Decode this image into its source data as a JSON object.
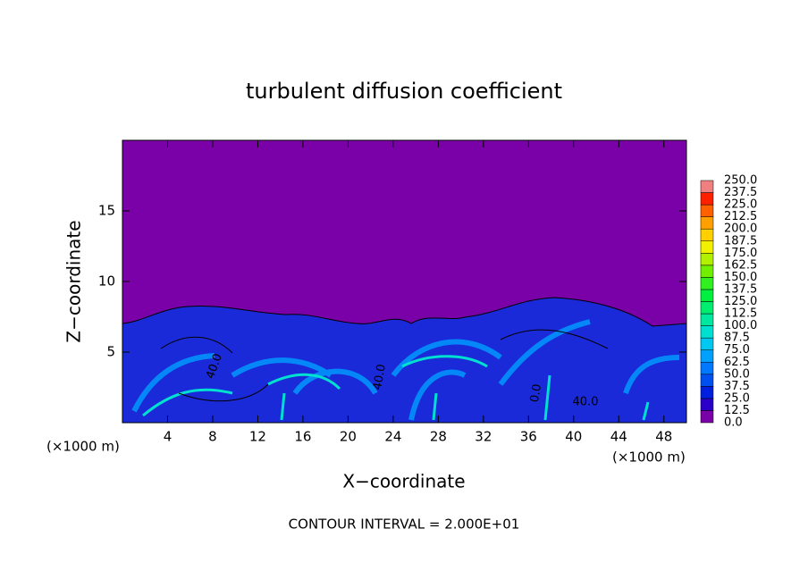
{
  "chart_data": {
    "type": "contour",
    "title": "turbulent diffusion coefficient",
    "x_label": "X−coordinate",
    "y_label": "Z−coordinate",
    "x_unit": "(×1000 m)",
    "x_unit_right": "(×1000 m)",
    "footer": "CONTOUR INTERVAL = 2.000E+01",
    "xlim": [
      0,
      50
    ],
    "xticks": [
      4,
      8,
      12,
      16,
      20,
      24,
      28,
      32,
      36,
      40,
      44,
      48
    ],
    "ylim": [
      0,
      20
    ],
    "yticks": [
      5,
      10,
      15
    ],
    "annotations": [
      "40.0",
      "40.0",
      "40.0",
      "0.0"
    ],
    "colorbar": {
      "levels": [
        {
          "value": 0,
          "label": "0.0"
        },
        {
          "value": 12.5,
          "label": "12.5"
        },
        {
          "value": 25,
          "label": "25.0"
        },
        {
          "value": 37.5,
          "label": "37.5"
        },
        {
          "value": 50,
          "label": "50.0"
        },
        {
          "value": 62.5,
          "label": "62.5"
        },
        {
          "value": 75,
          "label": "75.0"
        },
        {
          "value": 87.5,
          "label": "87.5"
        },
        {
          "value": 100,
          "label": "100.0"
        },
        {
          "value": 112.5,
          "label": "112.5"
        },
        {
          "value": 125,
          "label": "125.0"
        },
        {
          "value": 137.5,
          "label": "137.5"
        },
        {
          "value": 150,
          "label": "150.0"
        },
        {
          "value": 162.5,
          "label": "162.5"
        },
        {
          "value": 175,
          "label": "175.0"
        },
        {
          "value": 187.5,
          "label": "187.5"
        },
        {
          "value": 200,
          "label": "200.0"
        },
        {
          "value": 212.5,
          "label": "212.5"
        },
        {
          "value": 225,
          "label": "225.0"
        },
        {
          "value": 237.5,
          "label": "237.5"
        },
        {
          "value": 250,
          "label": "250.0"
        }
      ],
      "colors": [
        "#7a00a8",
        "#2a00c8",
        "#0020e0",
        "#0050f0",
        "#0078ff",
        "#00a0ff",
        "#00c8f0",
        "#00e0d0",
        "#00e8a0",
        "#00ee70",
        "#00f040",
        "#30f020",
        "#70f000",
        "#b0f000",
        "#f0f000",
        "#ffd000",
        "#ffa000",
        "#ff6000",
        "#ff2000",
        "#f08080"
      ]
    }
  }
}
